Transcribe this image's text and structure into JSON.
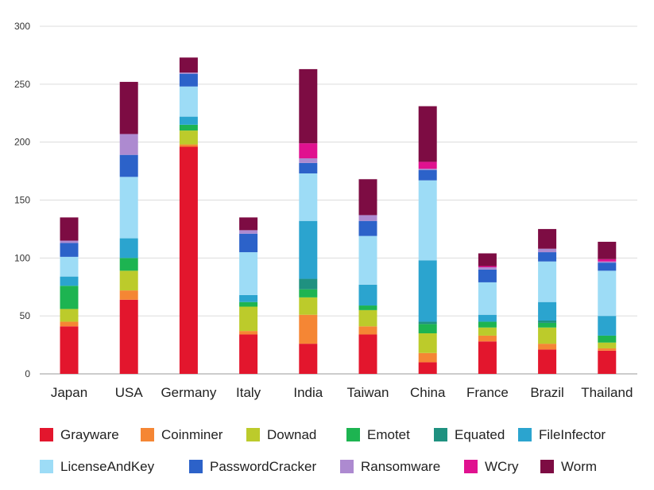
{
  "chart_data": {
    "type": "bar",
    "stacked": true,
    "title": "",
    "xlabel": "",
    "ylabel": "",
    "ylim": [
      0,
      300
    ],
    "yticks": [
      0,
      50,
      100,
      150,
      200,
      250,
      300
    ],
    "grid": true,
    "legend_position": "bottom",
    "categories": [
      "Japan",
      "USA",
      "Germany",
      "Italy",
      "India",
      "Taiwan",
      "China",
      "France",
      "Brazil",
      "Thailand"
    ],
    "series": [
      {
        "name": "Grayware",
        "color": "#e3162d",
        "values": [
          41,
          64,
          196,
          34,
          26,
          34,
          10,
          28,
          21,
          20
        ]
      },
      {
        "name": "Coinminer",
        "color": "#f58634",
        "values": [
          4,
          8,
          2,
          3,
          25,
          7,
          8,
          5,
          5,
          2
        ]
      },
      {
        "name": "Downad",
        "color": "#bccb2b",
        "values": [
          11,
          17,
          12,
          21,
          15,
          14,
          17,
          7,
          14,
          5
        ]
      },
      {
        "name": "Emotet",
        "color": "#1db451",
        "values": [
          20,
          11,
          5,
          4,
          7,
          4,
          8,
          5,
          4,
          6
        ]
      },
      {
        "name": "Equated",
        "color": "#1f9180",
        "values": [
          0,
          0,
          0,
          0,
          9,
          0,
          2,
          0,
          2,
          0
        ]
      },
      {
        "name": "FileInfector",
        "color": "#2ba4cf",
        "values": [
          8,
          17,
          7,
          6,
          50,
          18,
          53,
          6,
          16,
          17
        ]
      },
      {
        "name": "LicenseAndKey",
        "color": "#9ddcf6",
        "values": [
          17,
          53,
          26,
          37,
          41,
          42,
          69,
          28,
          35,
          39
        ]
      },
      {
        "name": "PasswordCracker",
        "color": "#2c62c9",
        "values": [
          12,
          19,
          11,
          16,
          9,
          13,
          9,
          11,
          8,
          7
        ]
      },
      {
        "name": "Ransomware",
        "color": "#ad8ad0",
        "values": [
          2,
          18,
          1,
          3,
          4,
          5,
          1,
          2,
          3,
          1
        ]
      },
      {
        "name": "WCry",
        "color": "#e0118f",
        "values": [
          0,
          0,
          0,
          0,
          13,
          0,
          6,
          1,
          0,
          2
        ]
      },
      {
        "name": "Worm",
        "color": "#7d0c43",
        "values": [
          20,
          45,
          13,
          11,
          64,
          31,
          48,
          11,
          17,
          15
        ]
      }
    ]
  }
}
